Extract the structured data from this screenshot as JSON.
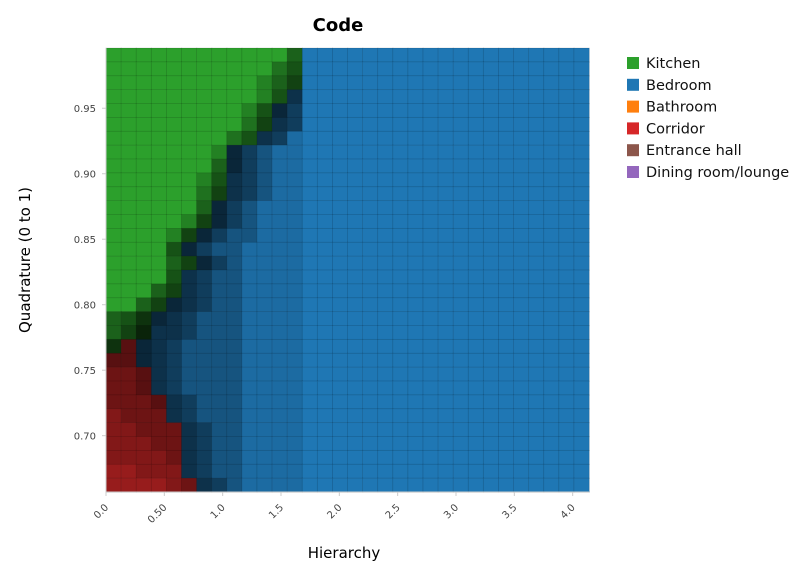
{
  "chart_data": {
    "type": "heatmap",
    "title": "Code",
    "xlabel": "Hierarchy",
    "ylabel": "Quadrature (0 to 1)",
    "xlim": [
      0,
      4.14
    ],
    "ylim": [
      0.657,
      0.996
    ],
    "x_ticks": [
      0,
      0.5,
      1.0,
      1.5,
      2.0,
      2.5,
      3.0,
      3.5,
      4.0
    ],
    "x_tick_labels": [
      "0.0",
      "0.50",
      "1.0",
      "1.5",
      "2.0",
      "2.5",
      "3.0",
      "3.5",
      "4.0"
    ],
    "y_ticks": [
      0.7,
      0.75,
      0.8,
      0.85,
      0.9,
      0.95
    ],
    "y_tick_labels": [
      "0.70",
      "0.75",
      "0.80",
      "0.85",
      "0.90",
      "0.95"
    ],
    "grid": true,
    "legend_placement": "right",
    "legend": [
      {
        "label": "Kitchen",
        "color": "#2ca02c"
      },
      {
        "label": "Bedroom",
        "color": "#1f77b4"
      },
      {
        "label": "Bathroom",
        "color": "#ff7f0e"
      },
      {
        "label": "Corridor",
        "color": "#d62728"
      },
      {
        "label": "Entrance hall",
        "color": "#8c564b"
      },
      {
        "label": "Dining room/lounge",
        "color": "#9467bd"
      }
    ],
    "grid_columns": 32,
    "grid_rows_order": "top-to-bottom",
    "category_runs": [
      [
        [
          "Kitchen",
          13
        ],
        [
          "Bedroom",
          19
        ]
      ],
      [
        [
          "Kitchen",
          13
        ],
        [
          "Bedroom",
          19
        ]
      ],
      [
        [
          "Kitchen",
          13
        ],
        [
          "Bedroom",
          19
        ]
      ],
      [
        [
          "Kitchen",
          12
        ],
        [
          "Bedroom",
          20
        ]
      ],
      [
        [
          "Kitchen",
          11
        ],
        [
          "Bedroom",
          21
        ]
      ],
      [
        [
          "Kitchen",
          11
        ],
        [
          "Bedroom",
          21
        ]
      ],
      [
        [
          "Kitchen",
          10
        ],
        [
          "Bedroom",
          22
        ]
      ],
      [
        [
          "Kitchen",
          8
        ],
        [
          "Bedroom",
          24
        ]
      ],
      [
        [
          "Kitchen",
          8
        ],
        [
          "Bedroom",
          24
        ]
      ],
      [
        [
          "Kitchen",
          8
        ],
        [
          "Bedroom",
          24
        ]
      ],
      [
        [
          "Kitchen",
          8
        ],
        [
          "Bedroom",
          24
        ]
      ],
      [
        [
          "Kitchen",
          7
        ],
        [
          "Bedroom",
          25
        ]
      ],
      [
        [
          "Kitchen",
          7
        ],
        [
          "Bedroom",
          25
        ]
      ],
      [
        [
          "Kitchen",
          6
        ],
        [
          "Bedroom",
          26
        ]
      ],
      [
        [
          "Kitchen",
          5
        ],
        [
          "Bedroom",
          27
        ]
      ],
      [
        [
          "Kitchen",
          6
        ],
        [
          "Bedroom",
          26
        ]
      ],
      [
        [
          "Kitchen",
          5
        ],
        [
          "Bedroom",
          27
        ]
      ],
      [
        [
          "Kitchen",
          5
        ],
        [
          "Bedroom",
          27
        ]
      ],
      [
        [
          "Kitchen",
          4
        ],
        [
          "Bedroom",
          28
        ]
      ],
      [
        [
          "Kitchen",
          3
        ],
        [
          "Bedroom",
          29
        ]
      ],
      [
        [
          "Kitchen",
          3
        ],
        [
          "Bedroom",
          29
        ]
      ],
      [
        [
          "Kitchen",
          1
        ],
        [
          "Corridor",
          1
        ],
        [
          "Bedroom",
          30
        ]
      ],
      [
        [
          "Corridor",
          2
        ],
        [
          "Bedroom",
          30
        ]
      ],
      [
        [
          "Corridor",
          3
        ],
        [
          "Bedroom",
          29
        ]
      ],
      [
        [
          "Corridor",
          3
        ],
        [
          "Bedroom",
          29
        ]
      ],
      [
        [
          "Corridor",
          4
        ],
        [
          "Bedroom",
          28
        ]
      ],
      [
        [
          "Corridor",
          4
        ],
        [
          "Bedroom",
          28
        ]
      ],
      [
        [
          "Corridor",
          5
        ],
        [
          "Bedroom",
          27
        ]
      ],
      [
        [
          "Corridor",
          5
        ],
        [
          "Bedroom",
          27
        ]
      ],
      [
        [
          "Corridor",
          5
        ],
        [
          "Bedroom",
          27
        ]
      ],
      [
        [
          "Corridor",
          5
        ],
        [
          "Bedroom",
          27
        ]
      ],
      [
        [
          "Corridor",
          6
        ],
        [
          "Bedroom",
          26
        ]
      ]
    ],
    "intensity_0_to_9": [
      "99999999999959999999999999999999",
      "99999999999649999999999999999999",
      "99999999997539999999999999999999",
      "99999999997439999999999999999999",
      "99999999974249999999999999999999",
      "99999999963349999999999999999999",
      "99999999643489999999999999999999",
      "99999997246889999999999999999999",
      "99999995246889999999999999999999",
      "99999974346889999999999999999999",
      "99999963346889999999999999999999",
      "99999952468889999999999999999999",
      "99999732468889999999999999999999",
      "99997324668889999999999999999999",
      "99994246688889999999999999999999",
      "99995324688889999999999999999999",
      "99994346688889999999999999999999",
      "99953346688889999999999999999999",
      "99532346688889999999999999999999",
      "54223466688889999999999999999999",
      "53133466688889999999999999999999",
      "23234666688889999999999999999999",
      "33234666688889999999999999999999",
      "44334666688889999999999999999999",
      "44334666688889999999999999999999",
      "44433466688889999999999999999999",
      "54443466688889999999999999999999",
      "55444346688889999999999999999999",
      "55544346688889999999999999999999",
      "55554346688889999999999999999999",
      "66555346688889999999999999999999",
      "66665434688889999999999999999999"
    ]
  }
}
